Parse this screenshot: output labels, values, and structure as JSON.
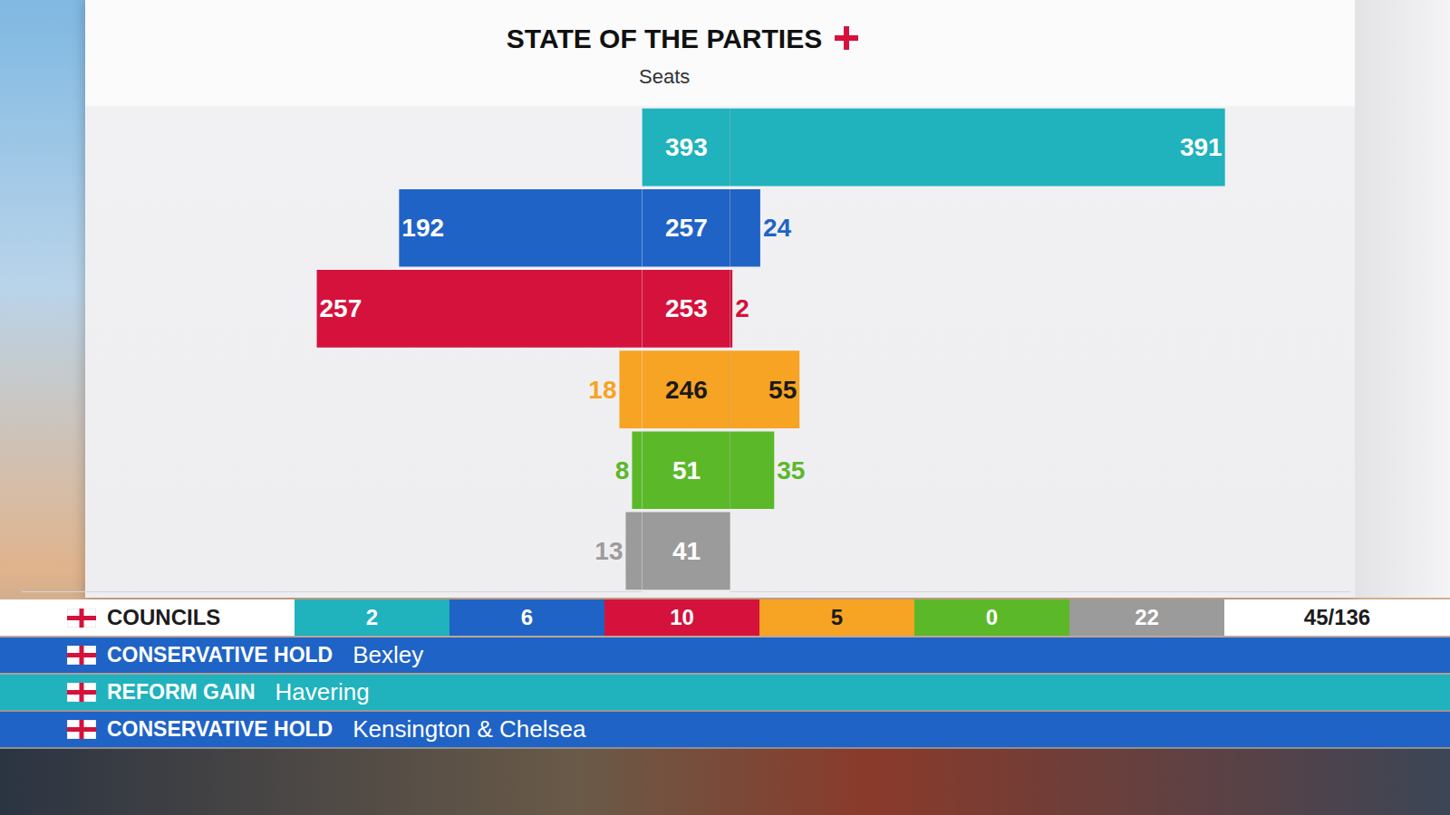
{
  "chart_data": {
    "type": "bar",
    "title": "STATE OF THE PARTIES",
    "subtitle": "Seats",
    "orientation": "horizontal",
    "categories": [
      null,
      null,
      null,
      null,
      null,
      null
    ],
    "colors": [
      "#20b2bd",
      "#1f63c6",
      "#d4123c",
      "#f7a323",
      "#5bb829",
      "#9b9b9b"
    ],
    "values_left": [
      null,
      192,
      257,
      18,
      8,
      13
    ],
    "values_center": [
      393,
      257,
      253,
      246,
      51,
      41
    ],
    "values_right": [
      391,
      24,
      2,
      55,
      35,
      null
    ],
    "xlim": [
      0,
      490
    ],
    "tick_labels": false,
    "grid": false,
    "data_labels": true
  },
  "councils": {
    "label": "COUNCILS",
    "values": [
      2,
      6,
      10,
      5,
      0,
      22
    ],
    "colors": [
      "#20b2bd",
      "#1f63c6",
      "#d4123c",
      "#f7a323",
      "#5bb829",
      "#9b9b9b"
    ],
    "declared": "45/136"
  },
  "headlines": [
    {
      "label": "CONSERVATIVE HOLD",
      "place": "Bexley",
      "color": "#1f63c6"
    },
    {
      "label": "REFORM GAIN",
      "place": "Havering",
      "color": "#20b2bd"
    },
    {
      "label": "CONSERVATIVE HOLD",
      "place": "Kensington & Chelsea",
      "color": "#1f63c6"
    }
  ]
}
